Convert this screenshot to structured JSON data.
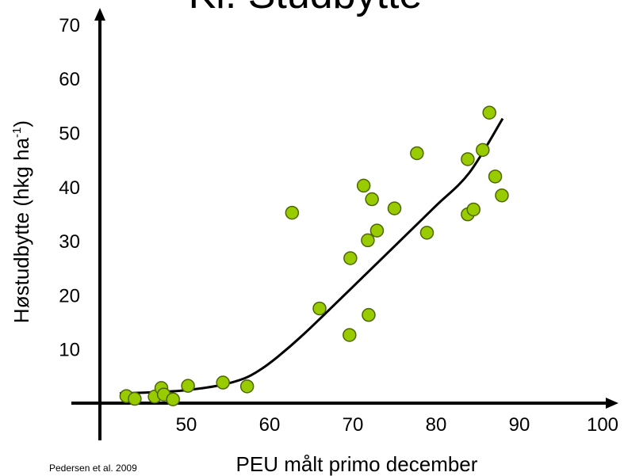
{
  "chart_data": {
    "type": "scatter",
    "title": "Kl. Studbytte",
    "xlabel": "PEU målt primo december",
    "ylabel_main": "Høstudbytte  (hkg ha",
    "ylabel_sup": "-1",
    "ylabel_end": ")",
    "source": "Pedersen et al. 2009",
    "x_ticks": [
      "50",
      "60",
      "70",
      "80",
      "90",
      "100"
    ],
    "y_ticks": [
      "10",
      "20",
      "30",
      "40",
      "50",
      "60",
      "70"
    ],
    "xlim": [
      40,
      100
    ],
    "ylim": [
      0,
      70
    ],
    "colors": {
      "point_fill": "#99cc00",
      "point_stroke": "#4d6600",
      "line": "#000000"
    },
    "points": [
      {
        "x": 42.8,
        "y": 1.3
      },
      {
        "x": 43.8,
        "y": 0.8
      },
      {
        "x": 46.2,
        "y": 1.2
      },
      {
        "x": 47.0,
        "y": 2.8
      },
      {
        "x": 47.3,
        "y": 1.6
      },
      {
        "x": 48.4,
        "y": 0.7
      },
      {
        "x": 50.2,
        "y": 3.2
      },
      {
        "x": 54.4,
        "y": 3.8
      },
      {
        "x": 57.3,
        "y": 3.1
      },
      {
        "x": 62.7,
        "y": 35.2
      },
      {
        "x": 66.0,
        "y": 17.5
      },
      {
        "x": 69.6,
        "y": 12.6
      },
      {
        "x": 69.7,
        "y": 26.8
      },
      {
        "x": 71.3,
        "y": 40.2
      },
      {
        "x": 71.8,
        "y": 30.1
      },
      {
        "x": 71.9,
        "y": 16.3
      },
      {
        "x": 72.3,
        "y": 37.7
      },
      {
        "x": 72.9,
        "y": 31.9
      },
      {
        "x": 75.0,
        "y": 36.0
      },
      {
        "x": 77.7,
        "y": 46.2
      },
      {
        "x": 78.9,
        "y": 31.5
      },
      {
        "x": 83.8,
        "y": 45.1
      },
      {
        "x": 83.8,
        "y": 34.9
      },
      {
        "x": 84.5,
        "y": 35.8
      },
      {
        "x": 85.6,
        "y": 46.8
      },
      {
        "x": 86.4,
        "y": 53.7
      },
      {
        "x": 87.1,
        "y": 41.9
      },
      {
        "x": 87.9,
        "y": 38.4
      }
    ],
    "fit_line": [
      {
        "x": 42.0,
        "y": 1.8
      },
      {
        "x": 46.0,
        "y": 2.0
      },
      {
        "x": 50.0,
        "y": 2.4
      },
      {
        "x": 54.0,
        "y": 3.3
      },
      {
        "x": 57.0,
        "y": 4.6
      },
      {
        "x": 59.0,
        "y": 6.3
      },
      {
        "x": 61.0,
        "y": 8.6
      },
      {
        "x": 64.0,
        "y": 12.6
      },
      {
        "x": 68.0,
        "y": 18.5
      },
      {
        "x": 72.0,
        "y": 24.5
      },
      {
        "x": 76.0,
        "y": 30.5
      },
      {
        "x": 80.0,
        "y": 36.5
      },
      {
        "x": 84.0,
        "y": 42.6
      },
      {
        "x": 88.0,
        "y": 52.6
      }
    ]
  }
}
